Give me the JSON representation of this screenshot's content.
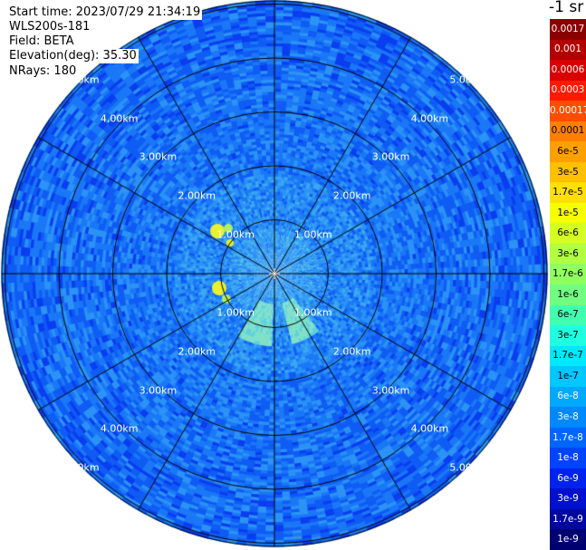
{
  "header": {
    "start_time": "Start time: 2023/07/29 21:34:19",
    "instrument": "WLS200s-181",
    "field": "Field: BETA",
    "elevation": "Elevation(deg): 35.30",
    "nrays": "NRays: 180"
  },
  "ppi": {
    "ring_labels": [
      "1.00km",
      "2.00km",
      "3.00km",
      "4.00km",
      "5.00km"
    ],
    "spokes": 12
  },
  "colorbar": {
    "title": "-1 sr",
    "labels": [
      "0.0017",
      "0.001",
      "0.0006",
      "0.0003",
      "0.00017",
      "0.0001",
      "6e-5",
      "3e-5",
      "1.7e-5",
      "1e-5",
      "6e-6",
      "3e-6",
      "1.7e-6",
      "1e-6",
      "6e-7",
      "3e-7",
      "1.7e-7",
      "1e-7",
      "6e-8",
      "3e-8",
      "1.7e-8",
      "1e-8",
      "6e-9",
      "3e-9",
      "1.7e-9",
      "1e-9"
    ],
    "colors": [
      "#8b0000",
      "#b30000",
      "#d80000",
      "#ff1a00",
      "#ff4d00",
      "#ff8000",
      "#ffa000",
      "#ffc000",
      "#ffe000",
      "#f5ff00",
      "#d4ff20",
      "#b0ff40",
      "#90ff60",
      "#70ff80",
      "#40ffb0",
      "#20ffe0",
      "#00e8ff",
      "#00c8ff",
      "#00a8ff",
      "#0088ff",
      "#0066ff",
      "#0044ff",
      "#0022ee",
      "#0010cc",
      "#0008a0",
      "#000070"
    ]
  }
}
